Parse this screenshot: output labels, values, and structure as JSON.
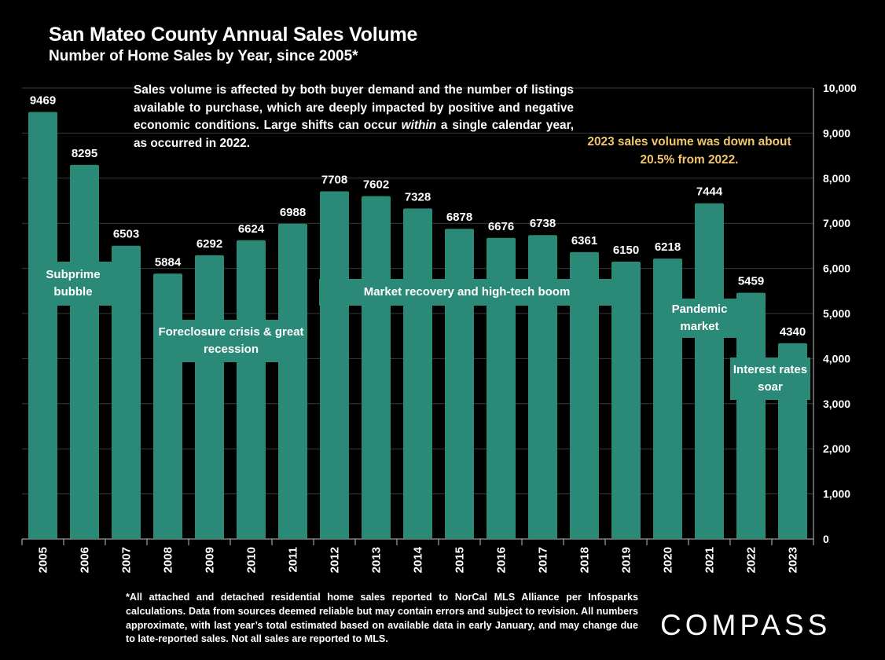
{
  "header": {
    "title": "San Mateo County Annual Sales Volume",
    "subtitle": "Number of Home Sales by Year, since 2005*"
  },
  "description": {
    "before": "Sales volume is affected by both buyer demand and the number of listings available to purchase, which are deeply impacted by positive and negative economic conditions. Large shifts can occur ",
    "emphasis": "within",
    "after": " a single calendar year, as occurred in 2022."
  },
  "callout": "2023 sales volume was down about 20.5% from 2022.",
  "annotations": [
    {
      "id": "subprime",
      "text": "Subprime bubble"
    },
    {
      "id": "foreclosure",
      "text": "Foreclosure crisis & great recession"
    },
    {
      "id": "recovery",
      "text": "Market recovery and high-tech boom"
    },
    {
      "id": "pandemic",
      "text": "Pandemic market"
    },
    {
      "id": "interest",
      "text": "Interest rates soar"
    }
  ],
  "footnote": "*All attached and detached residential home sales reported to NorCal MLS Alliance per Infosparks calculations. Data from sources deemed reliable but may contain errors and subject to revision. All numbers approximate, with last year’s total estimated based on available data in early January, and may change due to late-reported sales. Not all sales are reported to MLS.",
  "logo": "COMPASS",
  "colors": {
    "bar": "#2a8a77",
    "background": "#000000",
    "callout_text": "#f2c76b",
    "grid": "#3a3a3a"
  },
  "chart_data": {
    "type": "bar",
    "categories": [
      "2005",
      "2006",
      "2007",
      "2008",
      "2009",
      "2010",
      "2011",
      "2012",
      "2013",
      "2014",
      "2015",
      "2016",
      "2017",
      "2018",
      "2019",
      "2020",
      "2021",
      "2022",
      "2023"
    ],
    "values": [
      9469,
      8295,
      6503,
      5884,
      6292,
      6624,
      6988,
      7708,
      7602,
      7328,
      6878,
      6676,
      6738,
      6361,
      6150,
      6218,
      7444,
      5459,
      4340
    ],
    "ylim": [
      0,
      10000
    ],
    "yticks": [
      0,
      1000,
      2000,
      3000,
      4000,
      5000,
      6000,
      7000,
      8000,
      9000,
      10000
    ],
    "ytick_labels": [
      "0",
      "1,000",
      "2,000",
      "3,000",
      "4,000",
      "5,000",
      "6,000",
      "7,000",
      "8,000",
      "9,000",
      "10,000"
    ],
    "y_axis_position": "right",
    "grid": true,
    "data_labels": true
  }
}
